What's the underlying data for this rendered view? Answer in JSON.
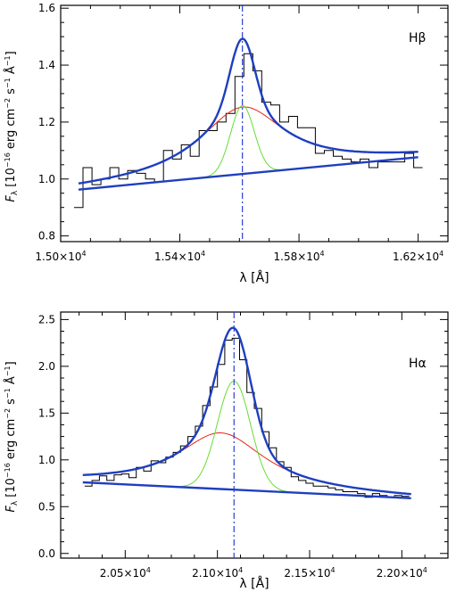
{
  "chart_data": [
    {
      "type": "line",
      "annotation": "Hβ",
      "xlabel": "λ [Å]",
      "ylabel": "F_λ [10^-16 erg cm^-2 s^-1 Å^-1]",
      "ylabel_parts": {
        "sym": "F",
        "sub": "λ",
        "unit_a": " [10",
        "exp1": "−16",
        "unit_b": " erg cm",
        "exp2": "−2",
        "unit_c": " s",
        "exp3": "−1",
        "unit_d": " Å",
        "exp4": "−1",
        "unit_e": "]"
      },
      "xlim": [
        15000,
        16300
      ],
      "ylim": [
        0.78,
        1.61
      ],
      "x_ticks": [
        {
          "value": 15000,
          "mant": "1.50×10",
          "exp": "4"
        },
        {
          "value": 15400,
          "mant": "1.54×10",
          "exp": "4"
        },
        {
          "value": 15800,
          "mant": "1.58×10",
          "exp": "4"
        },
        {
          "value": 16200,
          "mant": "1.62×10",
          "exp": "4"
        }
      ],
      "y_ticks": [
        {
          "value": 0.8,
          "label": "0.8"
        },
        {
          "value": 1.0,
          "label": "1.0"
        },
        {
          "value": 1.2,
          "label": "1.2"
        },
        {
          "value": 1.4,
          "label": "1.4"
        },
        {
          "value": 1.6,
          "label": "1.6"
        }
      ],
      "center_line_x": 15610,
      "colors": {
        "data": "#000000",
        "total": "#1f3fbf",
        "broad": "#e8221b",
        "narrow": "#66dd33",
        "center": "#2a3fd6"
      },
      "continuum": {
        "x0": 15060,
        "x1": 16200,
        "slope": 0.0001,
        "comment": "linear continuum y = 0.9626 + 0.0001*(x-15060)"
      },
      "continuum_params": {
        "y0": 0.9626,
        "x_ref": 15060
      },
      "broad": {
        "amp": 0.235,
        "center": 15610,
        "width": 175,
        "x0": 15060,
        "x1": 16200
      },
      "narrow": {
        "amp": 0.24,
        "center": 15610,
        "width": 40,
        "x0": 15480,
        "x1": 15740
      },
      "spectrum": {
        "x": [
          15060,
          15090,
          15120,
          15150,
          15180,
          15210,
          15240,
          15270,
          15300,
          15330,
          15360,
          15390,
          15420,
          15450,
          15480,
          15510,
          15540,
          15570,
          15600,
          15630,
          15660,
          15690,
          15720,
          15750,
          15780,
          15810,
          15840,
          15870,
          15900,
          15930,
          15960,
          15990,
          16020,
          16050,
          16080,
          16110,
          16140,
          16170,
          16200
        ],
        "y": [
          0.9,
          1.04,
          0.98,
          1.0,
          1.04,
          1.0,
          1.03,
          1.02,
          1.0,
          0.99,
          1.1,
          1.07,
          1.12,
          1.08,
          1.17,
          1.17,
          1.2,
          1.23,
          1.36,
          1.44,
          1.38,
          1.27,
          1.26,
          1.2,
          1.22,
          1.18,
          1.18,
          1.09,
          1.1,
          1.08,
          1.07,
          1.06,
          1.07,
          1.04,
          1.06,
          1.06,
          1.06,
          1.09,
          1.04
        ]
      }
    },
    {
      "type": "line",
      "annotation": "Hα",
      "xlabel": "λ [Å]",
      "ylabel": "F_λ [10^-16 erg cm^-2 s^-1 Å^-1]",
      "ylabel_parts": {
        "sym": "F",
        "sub": "λ",
        "unit_a": " [10",
        "exp1": "−16",
        "unit_b": " erg cm",
        "exp2": "−2",
        "unit_c": " s",
        "exp3": "−1",
        "unit_d": " Å",
        "exp4": "−1",
        "unit_e": "]"
      },
      "xlim": [
        20150,
        22250
      ],
      "ylim": [
        -0.05,
        2.58
      ],
      "x_ticks": [
        {
          "value": 20500,
          "mant": "2.05×10",
          "exp": "4"
        },
        {
          "value": 21000,
          "mant": "2.10×10",
          "exp": "4"
        },
        {
          "value": 21500,
          "mant": "2.15×10",
          "exp": "4"
        },
        {
          "value": 22000,
          "mant": "2.20×10",
          "exp": "4"
        }
      ],
      "y_ticks": [
        {
          "value": 0.0,
          "label": "0.0"
        },
        {
          "value": 0.5,
          "label": "0.5"
        },
        {
          "value": 1.0,
          "label": "1.0"
        },
        {
          "value": 1.5,
          "label": "1.5"
        },
        {
          "value": 2.0,
          "label": "2.0"
        },
        {
          "value": 2.5,
          "label": "2.5"
        }
      ],
      "center_line_x": 21090,
      "colors": {
        "data": "#000000",
        "total": "#1f3fbf",
        "broad": "#e8221b",
        "narrow": "#66dd33",
        "center": "#2a3fd6"
      },
      "continuum": {
        "x0": 20270,
        "x1": 22050,
        "slope": -9.55e-05
      },
      "continuum_params": {
        "y0": 0.76,
        "x_ref": 20270
      },
      "broad": {
        "amp": 0.6,
        "center": 21020,
        "width": 290,
        "x0": 20270,
        "x1": 22050
      },
      "narrow": {
        "amp": 1.16,
        "center": 21090,
        "width": 90,
        "x0": 20800,
        "x1": 21380
      },
      "spectrum": {
        "x": [
          20300,
          20340,
          20380,
          20420,
          20460,
          20500,
          20540,
          20580,
          20620,
          20660,
          20700,
          20740,
          20780,
          20820,
          20860,
          20900,
          20940,
          20980,
          21020,
          21060,
          21100,
          21140,
          21180,
          21220,
          21260,
          21300,
          21340,
          21380,
          21420,
          21460,
          21500,
          21540,
          21580,
          21620,
          21660,
          21700,
          21740,
          21780,
          21820,
          21860,
          21900,
          21940,
          21980,
          22020
        ],
        "y": [
          0.72,
          0.78,
          0.83,
          0.78,
          0.84,
          0.85,
          0.81,
          0.92,
          0.88,
          0.99,
          0.97,
          1.03,
          1.08,
          1.15,
          1.25,
          1.36,
          1.58,
          1.78,
          2.02,
          2.28,
          2.3,
          2.07,
          1.72,
          1.55,
          1.3,
          1.13,
          0.98,
          0.92,
          0.82,
          0.78,
          0.75,
          0.72,
          0.72,
          0.7,
          0.68,
          0.66,
          0.66,
          0.64,
          0.6,
          0.64,
          0.62,
          0.6,
          0.62,
          0.61
        ]
      }
    }
  ]
}
